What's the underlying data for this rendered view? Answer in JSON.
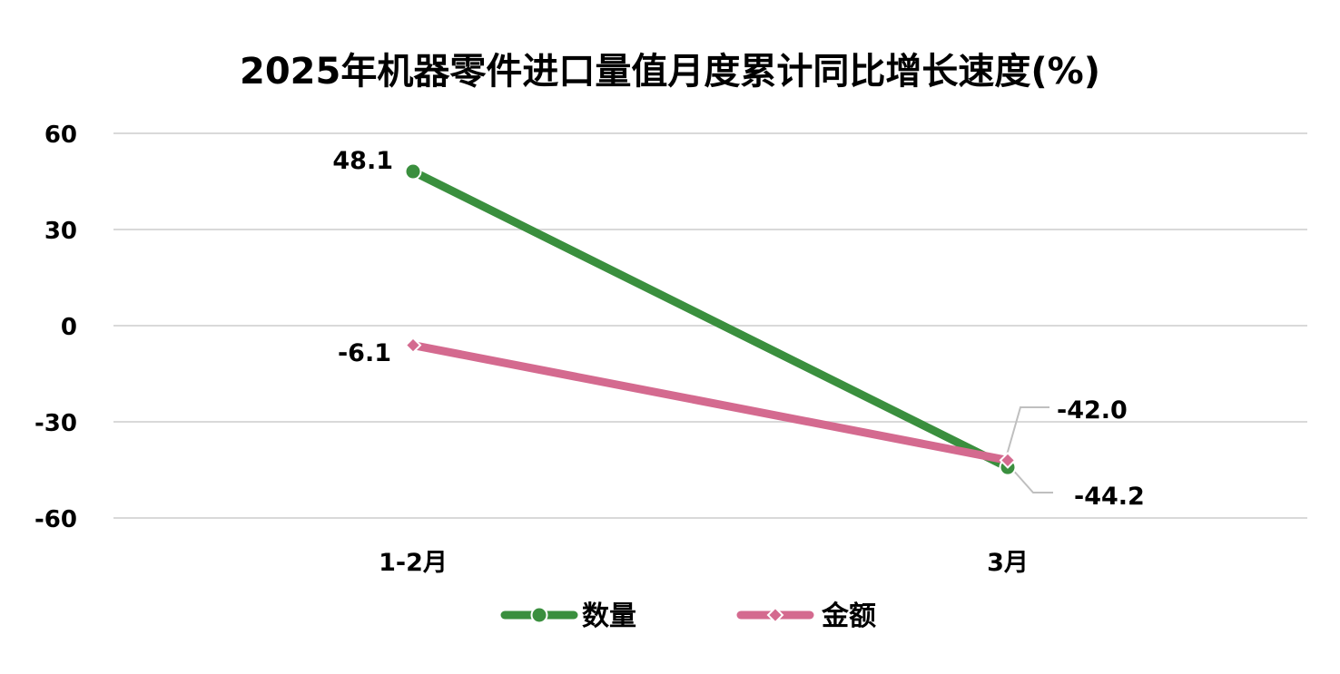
{
  "chart_data": {
    "type": "line",
    "title": "2025年机器零件进口量值月度累计同比增长速度(%)",
    "categories": [
      "1-2月",
      "3月"
    ],
    "series": [
      {
        "name": "数量",
        "values": [
          48.1,
          -44.2
        ],
        "labels": [
          "48.1",
          "-44.2"
        ],
        "color": "#3a8f3e",
        "marker": "circle"
      },
      {
        "name": "金额",
        "values": [
          -6.1,
          -42.0
        ],
        "labels": [
          "-6.1",
          "-42.0"
        ],
        "color": "#d46a8f",
        "marker": "diamond"
      }
    ],
    "ylim": [
      -60,
      60
    ],
    "yticks": [
      "60",
      "30",
      "0",
      "-30",
      "-60"
    ],
    "xlabel": "",
    "ylabel": "",
    "grid": true,
    "legend": "bottom",
    "grid_color": "#d9d9d9",
    "leader_line_color": "#bfbfbf"
  }
}
